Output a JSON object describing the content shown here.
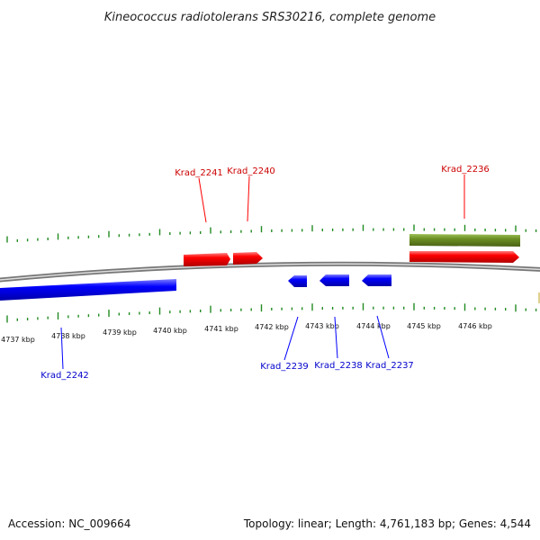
{
  "title": "Kineococcus radiotolerans SRS30216, complete genome",
  "footer": {
    "accession": "Accession: NC_009664",
    "topology": "Topology: linear; Length: 4,761,183 bp; Genes: 4,544"
  },
  "colors": {
    "forward": "#ff0000",
    "forward_label": "#cc0000",
    "reverse": "#0000ff",
    "reverse_label": "#0000cc",
    "other_feature": "#6b8e23",
    "backbone": "#888888",
    "tick": "#228b22"
  },
  "scale_labels": [
    "4737 kbp",
    "4738 kbp",
    "4739 kbp",
    "4740 kbp",
    "4741 kbp",
    "4742 kbp",
    "4743 kbp",
    "4744 kbp",
    "4745 kbp",
    "4746 kbp"
  ],
  "genes_forward": [
    {
      "label": "Krad_2241"
    },
    {
      "label": "Krad_2240"
    },
    {
      "label": "Krad_2236"
    }
  ],
  "genes_reverse": [
    {
      "label": "Krad_2242"
    },
    {
      "label": "Krad_2239"
    },
    {
      "label": "Krad_2238"
    },
    {
      "label": "Krad_2237"
    }
  ]
}
